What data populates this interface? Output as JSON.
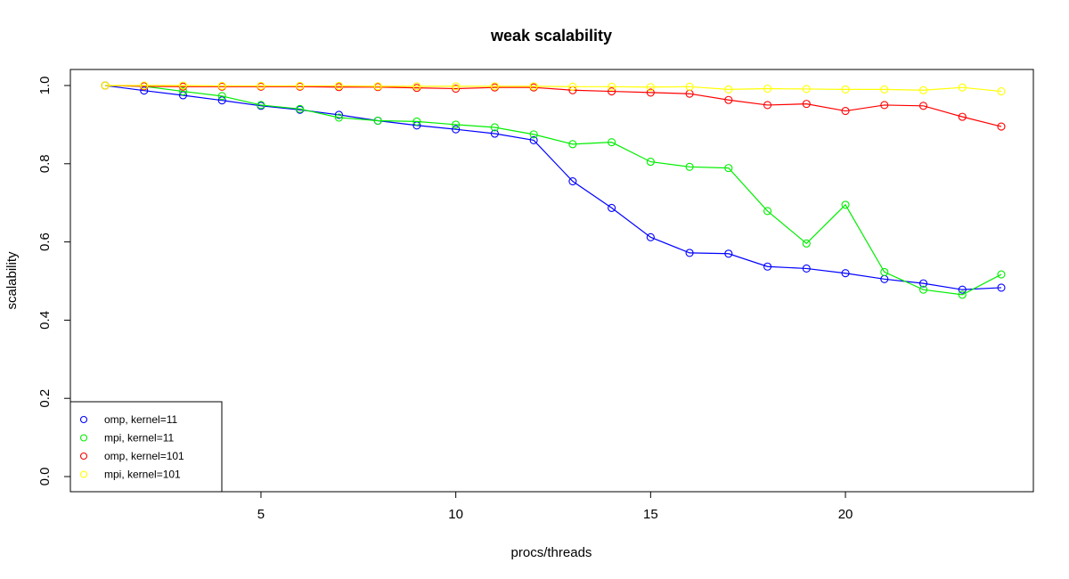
{
  "chart_data": {
    "type": "line",
    "title": "weak scalability",
    "xlabel": "procs/threads",
    "ylabel": "scalability",
    "xlim": [
      1,
      24
    ],
    "ylim": [
      0,
      1
    ],
    "xticks": [
      5,
      10,
      15,
      20
    ],
    "yticks": [
      0.0,
      0.2,
      0.4,
      0.6,
      0.8,
      1.0
    ],
    "ytick_labels": [
      "0.0",
      "0.2",
      "0.4",
      "0.6",
      "0.8",
      "1.0"
    ],
    "grid": false,
    "legend_position": "bottom-left",
    "x": [
      1,
      2,
      3,
      4,
      5,
      6,
      7,
      8,
      9,
      10,
      11,
      12,
      13,
      14,
      15,
      16,
      17,
      18,
      19,
      20,
      21,
      22,
      23,
      24
    ],
    "series": [
      {
        "name": "omp, kernel=11",
        "color": "#0000ff",
        "values": [
          1.0,
          0.987,
          0.975,
          0.962,
          0.948,
          0.938,
          0.925,
          0.91,
          0.898,
          0.888,
          0.877,
          0.86,
          0.755,
          0.687,
          0.612,
          0.572,
          0.57,
          0.537,
          0.532,
          0.52,
          0.505,
          0.494,
          0.478,
          0.483
        ]
      },
      {
        "name": "mpi, kernel=11",
        "color": "#00ee00",
        "values": [
          1.0,
          0.998,
          0.985,
          0.973,
          0.95,
          0.94,
          0.918,
          0.91,
          0.908,
          0.9,
          0.893,
          0.875,
          0.85,
          0.855,
          0.805,
          0.792,
          0.789,
          0.679,
          0.596,
          0.695,
          0.523,
          0.478,
          0.465,
          0.517
        ]
      },
      {
        "name": "omp, kernel=101",
        "color": "#ff0000",
        "values": [
          1.0,
          0.998,
          0.997,
          0.997,
          0.997,
          0.997,
          0.996,
          0.996,
          0.994,
          0.992,
          0.995,
          0.995,
          0.988,
          0.985,
          0.982,
          0.979,
          0.963,
          0.95,
          0.953,
          0.935,
          0.95,
          0.948,
          0.92,
          0.895
        ]
      },
      {
        "name": "mpi, kernel=101",
        "color": "#ffff00",
        "values": [
          1.0,
          1.0,
          1.0,
          0.999,
          0.999,
          0.999,
          0.999,
          0.998,
          0.998,
          0.998,
          0.998,
          0.998,
          0.997,
          0.997,
          0.996,
          0.997,
          0.99,
          0.992,
          0.991,
          0.99,
          0.99,
          0.988,
          0.995,
          0.985
        ]
      }
    ]
  }
}
